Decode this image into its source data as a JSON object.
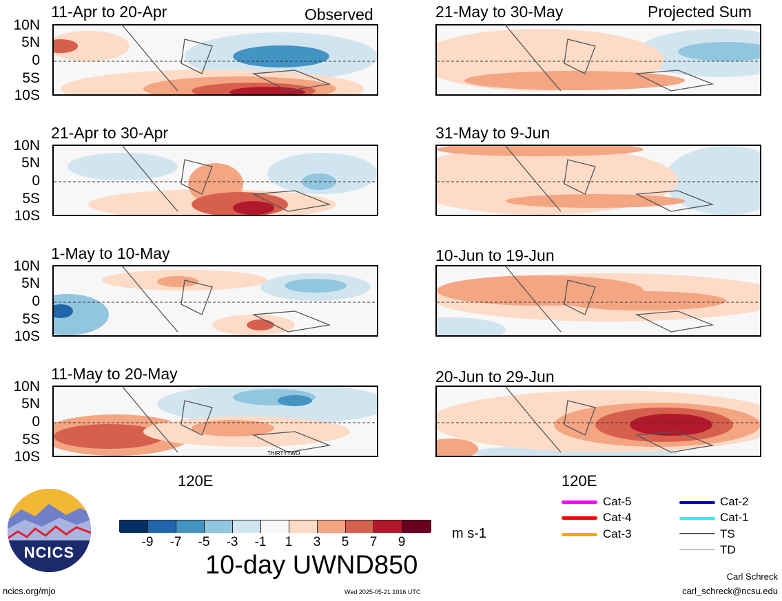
{
  "tags": {
    "observed": "Observed",
    "projected": "Projected Sum"
  },
  "lat_labels": [
    "10N",
    "5N",
    "0",
    "5S",
    "10S"
  ],
  "panels": {
    "left": [
      {
        "title": "11-Apr to 20-Apr"
      },
      {
        "title": "21-Apr to 30-Apr"
      },
      {
        "title": "1-May to 10-May"
      },
      {
        "title": "11-May to 20-May",
        "annotation": "THIRTYTWO"
      }
    ],
    "right": [
      {
        "title": "21-May to 30-May"
      },
      {
        "title": "31-May to 9-Jun"
      },
      {
        "title": "10-Jun to 19-Jun"
      },
      {
        "title": "20-Jun to 29-Jun"
      }
    ]
  },
  "x_axis_label": "120E",
  "colorbar": {
    "title": "10-day UWND850",
    "units": "m s-1",
    "ticks": [
      "-9",
      "-7",
      "-5",
      "-3",
      "-1",
      "1",
      "3",
      "5",
      "7",
      "9"
    ],
    "colors": [
      "#053061",
      "#2166ac",
      "#4393c3",
      "#92c5de",
      "#d1e5f0",
      "#f7f7f7",
      "#fddbc7",
      "#f4a582",
      "#d6604d",
      "#b2182b",
      "#67001f"
    ]
  },
  "legend": [
    {
      "label": "Cat-5",
      "color": "#ff00ff"
    },
    {
      "label": "Cat-4",
      "color": "#ff0000"
    },
    {
      "label": "Cat-3",
      "color": "#ffa500"
    },
    {
      "label": "Cat-2",
      "color": "#0000cc"
    },
    {
      "label": "Cat-1",
      "color": "#00ffff"
    },
    {
      "label": "TS",
      "color": "#555555"
    },
    {
      "label": "TD",
      "color": "#aaaaaa"
    }
  ],
  "logo": {
    "text": "NCICS"
  },
  "footer": {
    "left": "ncics.org/mjo",
    "center": "Wed 2025-05-21 1016 UTC",
    "author": "Carl Schreck",
    "email": "carl_schreck@ncsu.edu"
  }
}
